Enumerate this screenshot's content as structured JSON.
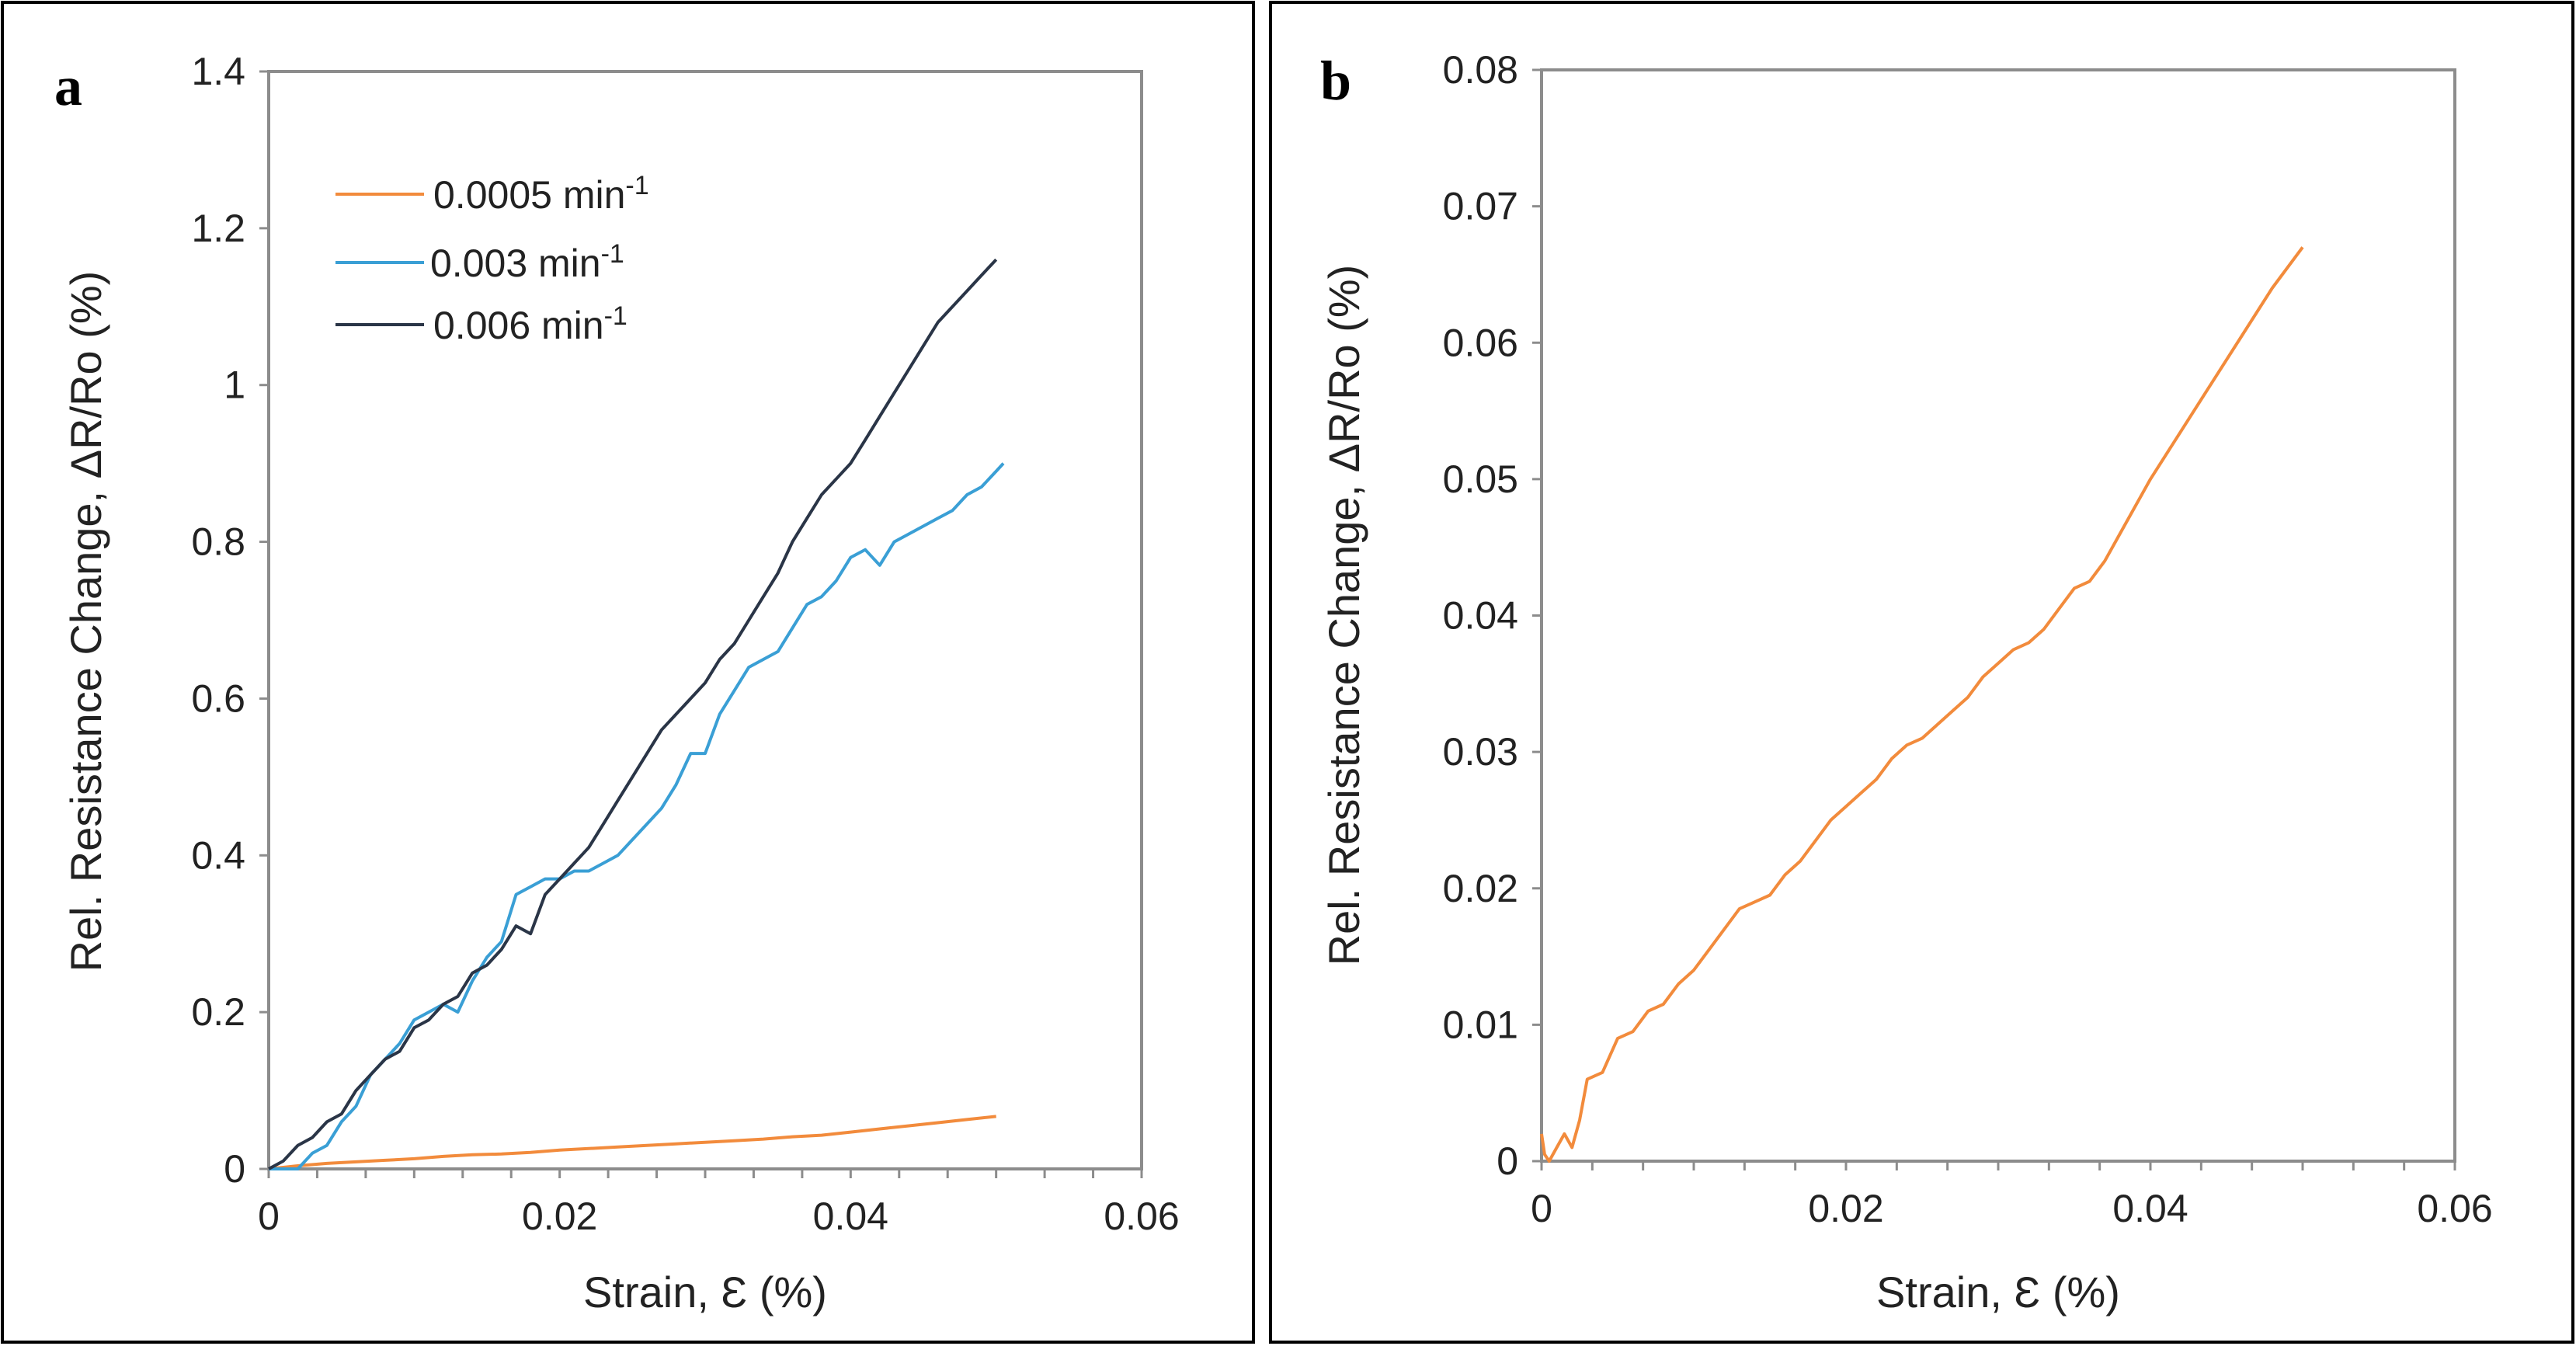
{
  "chart_data": [
    {
      "type": "line",
      "panel_label": "a",
      "xlabel": "Strain, Ɛ (%)",
      "ylabel": "Rel. Resistance Change, ΔR/Ro (%)",
      "xlim": [
        0,
        0.06
      ],
      "ylim": [
        0,
        1.4
      ],
      "xticks": [
        0,
        0.02,
        0.04,
        0.06
      ],
      "xtick_labels": [
        "0",
        "0.02",
        "0.04",
        "0.06"
      ],
      "yticks": [
        0,
        0.2,
        0.4,
        0.6,
        0.8,
        1,
        1.2,
        1.4
      ],
      "ytick_labels": [
        "0",
        "0.2",
        "0.4",
        "0.6",
        "0.8",
        "1",
        "1.2",
        "1.4"
      ],
      "legend_position": "top-left",
      "series": [
        {
          "name": "0.0005 min",
          "name_sup": "-1",
          "color": "#f28b3c",
          "x": [
            0,
            0.002,
            0.004,
            0.006,
            0.008,
            0.01,
            0.012,
            0.014,
            0.016,
            0.018,
            0.02,
            0.022,
            0.024,
            0.026,
            0.028,
            0.03,
            0.032,
            0.034,
            0.036,
            0.038,
            0.04,
            0.042,
            0.044,
            0.046,
            0.048,
            0.05
          ],
          "y": [
            0,
            0.004,
            0.007,
            0.009,
            0.011,
            0.013,
            0.016,
            0.018,
            0.019,
            0.021,
            0.024,
            0.026,
            0.028,
            0.03,
            0.032,
            0.034,
            0.036,
            0.038,
            0.041,
            0.043,
            0.047,
            0.051,
            0.055,
            0.059,
            0.063,
            0.067
          ]
        },
        {
          "name": "0.003 min",
          "name_sup": "-1",
          "color": "#3a9fd5",
          "x": [
            0,
            0.002,
            0.003,
            0.004,
            0.005,
            0.006,
            0.007,
            0.008,
            0.009,
            0.01,
            0.011,
            0.012,
            0.013,
            0.014,
            0.015,
            0.016,
            0.017,
            0.018,
            0.019,
            0.02,
            0.021,
            0.022,
            0.023,
            0.024,
            0.025,
            0.026,
            0.027,
            0.028,
            0.029,
            0.03,
            0.031,
            0.032,
            0.033,
            0.034,
            0.035,
            0.036,
            0.037,
            0.038,
            0.039,
            0.04,
            0.041,
            0.042,
            0.043,
            0.044,
            0.045,
            0.046,
            0.047,
            0.048,
            0.049,
            0.05,
            0.0505
          ],
          "y": [
            0,
            0,
            0.02,
            0.03,
            0.06,
            0.08,
            0.12,
            0.14,
            0.16,
            0.19,
            0.2,
            0.21,
            0.2,
            0.24,
            0.27,
            0.29,
            0.35,
            0.36,
            0.37,
            0.37,
            0.38,
            0.38,
            0.39,
            0.4,
            0.42,
            0.44,
            0.46,
            0.49,
            0.53,
            0.53,
            0.58,
            0.61,
            0.64,
            0.65,
            0.66,
            0.69,
            0.72,
            0.73,
            0.75,
            0.78,
            0.79,
            0.77,
            0.8,
            0.81,
            0.82,
            0.83,
            0.84,
            0.86,
            0.87,
            0.89,
            0.9
          ]
        },
        {
          "name": "0.006 min",
          "name_sup": "-1",
          "color": "#2a3547",
          "x": [
            0,
            0.001,
            0.002,
            0.003,
            0.004,
            0.005,
            0.006,
            0.007,
            0.008,
            0.009,
            0.01,
            0.011,
            0.012,
            0.013,
            0.014,
            0.015,
            0.016,
            0.017,
            0.018,
            0.019,
            0.02,
            0.021,
            0.022,
            0.023,
            0.024,
            0.025,
            0.026,
            0.027,
            0.028,
            0.029,
            0.03,
            0.031,
            0.032,
            0.033,
            0.034,
            0.035,
            0.036,
            0.037,
            0.038,
            0.039,
            0.04,
            0.041,
            0.042,
            0.043,
            0.044,
            0.045,
            0.046,
            0.047,
            0.048,
            0.049,
            0.05
          ],
          "y": [
            0,
            0.01,
            0.03,
            0.04,
            0.06,
            0.07,
            0.1,
            0.12,
            0.14,
            0.15,
            0.18,
            0.19,
            0.21,
            0.22,
            0.25,
            0.26,
            0.28,
            0.31,
            0.3,
            0.35,
            0.37,
            0.39,
            0.41,
            0.44,
            0.47,
            0.5,
            0.53,
            0.56,
            0.58,
            0.6,
            0.62,
            0.65,
            0.67,
            0.7,
            0.73,
            0.76,
            0.8,
            0.83,
            0.86,
            0.88,
            0.9,
            0.93,
            0.96,
            0.99,
            1.02,
            1.05,
            1.08,
            1.1,
            1.12,
            1.14,
            1.16
          ]
        }
      ]
    },
    {
      "type": "line",
      "panel_label": "b",
      "xlabel": "Strain, Ɛ (%)",
      "ylabel": "Rel. Resistance Change, ΔR/Ro (%)",
      "xlim": [
        0,
        0.06
      ],
      "ylim": [
        0,
        0.08
      ],
      "xticks": [
        0,
        0.02,
        0.04,
        0.06
      ],
      "xtick_labels": [
        "0",
        "0.02",
        "0.04",
        "0.06"
      ],
      "yticks": [
        0,
        0.01,
        0.02,
        0.03,
        0.04,
        0.05,
        0.06,
        0.07,
        0.08
      ],
      "ytick_labels": [
        "0",
        "0.01",
        "0.02",
        "0.03",
        "0.04",
        "0.05",
        "0.06",
        "0.07",
        "0.08"
      ],
      "series": [
        {
          "name": "0.0005 min",
          "name_sup": "-1",
          "color": "#f28b3c",
          "x": [
            0,
            0.0002,
            0.0005,
            0.001,
            0.0015,
            0.002,
            0.0025,
            0.003,
            0.004,
            0.005,
            0.006,
            0.007,
            0.008,
            0.009,
            0.01,
            0.011,
            0.012,
            0.013,
            0.014,
            0.015,
            0.016,
            0.017,
            0.018,
            0.019,
            0.02,
            0.021,
            0.022,
            0.023,
            0.024,
            0.025,
            0.026,
            0.027,
            0.028,
            0.029,
            0.03,
            0.031,
            0.032,
            0.033,
            0.034,
            0.035,
            0.036,
            0.037,
            0.038,
            0.039,
            0.04,
            0.042,
            0.044,
            0.046,
            0.048,
            0.05
          ],
          "y": [
            0.002,
            0.0005,
            0,
            0.001,
            0.002,
            0.001,
            0.003,
            0.006,
            0.0065,
            0.009,
            0.0095,
            0.011,
            0.0115,
            0.013,
            0.014,
            0.0155,
            0.017,
            0.0185,
            0.019,
            0.0195,
            0.021,
            0.022,
            0.0235,
            0.025,
            0.026,
            0.027,
            0.028,
            0.0295,
            0.0305,
            0.031,
            0.032,
            0.033,
            0.034,
            0.0355,
            0.0365,
            0.0375,
            0.038,
            0.039,
            0.0405,
            0.042,
            0.0425,
            0.044,
            0.046,
            0.048,
            0.05,
            0.0535,
            0.057,
            0.0605,
            0.064,
            0.067
          ]
        }
      ]
    }
  ]
}
